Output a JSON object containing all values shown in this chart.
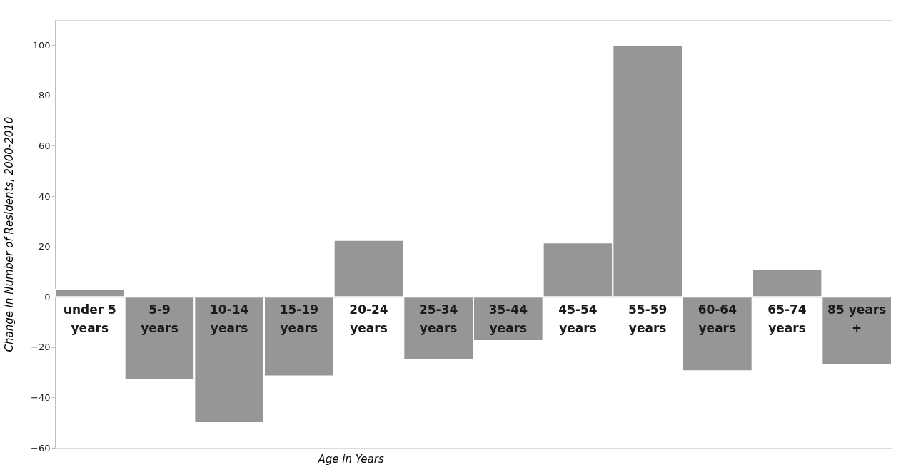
{
  "chart_data": {
    "type": "bar",
    "xlabel": "Age in Years",
    "ylabel": "Change in Number of Residents, 2000-2010",
    "categories": [
      "under 5 years",
      "5-9 years",
      "10-14 years",
      "15-19 years",
      "20-24 years",
      "25-34 years",
      "35-44 years",
      "45-54 years",
      "55-59 years",
      "60-64 years",
      "65-74 years",
      "85 years +"
    ],
    "values": [
      3,
      -33,
      -50,
      -31.5,
      22.5,
      -25,
      -17.5,
      21.5,
      100,
      -29.5,
      11,
      -27
    ],
    "color": "#969696",
    "ylim": [
      -60,
      110
    ],
    "yticks": [
      -60,
      -40,
      -20,
      0,
      20,
      40,
      60,
      80,
      100
    ],
    "grid": false
  }
}
